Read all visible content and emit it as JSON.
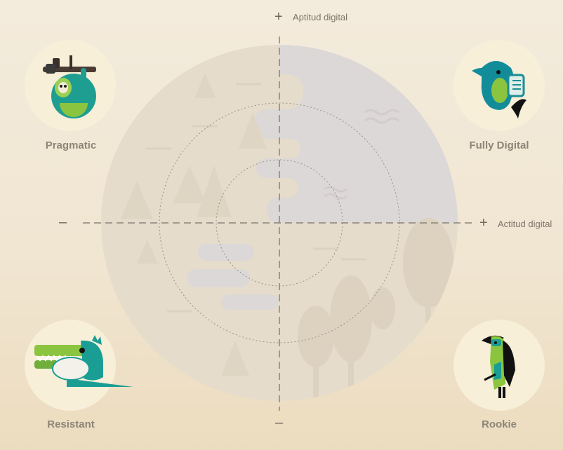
{
  "axes": {
    "vertical_top_sign": "+",
    "vertical_top_label": "Aptitud digital",
    "vertical_bottom_sign": "–",
    "horizontal_left_sign": "–",
    "horizontal_right_sign": "+",
    "horizontal_right_label": "Actitud digital"
  },
  "quadrants": {
    "top_left": {
      "label": "Pragmatic",
      "icon": "sloth-icon"
    },
    "top_right": {
      "label": "Fully Digital",
      "icon": "dolphin-icon"
    },
    "bottom_left": {
      "label": "Resistant",
      "icon": "crocodile-icon"
    },
    "bottom_right": {
      "label": "Rookie",
      "icon": "toucan-icon"
    }
  },
  "colors": {
    "circle_beige": "#e6dccb",
    "circle_gray": "#dcd8d6",
    "teal": "#1a9e94",
    "green": "#8bc53f"
  }
}
